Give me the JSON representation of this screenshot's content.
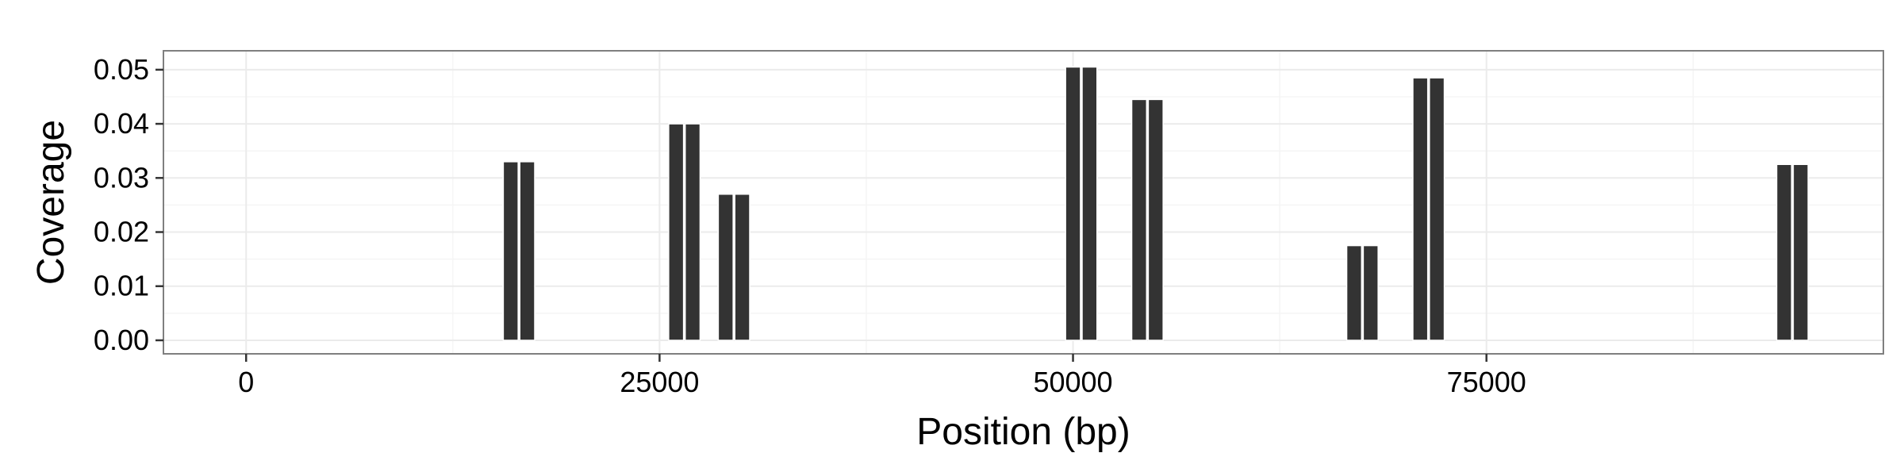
{
  "chart_data": {
    "type": "bar",
    "title": "",
    "xlabel": "Position (bp)",
    "ylabel": "Coverage",
    "xlim": [
      -5000,
      99000
    ],
    "ylim": [
      -0.0025,
      0.0535
    ],
    "x_ticks": [
      0,
      25000,
      50000,
      75000
    ],
    "x_tick_labels": [
      "0",
      "25000",
      "50000",
      "75000"
    ],
    "y_ticks": [
      0,
      0.01,
      0.02,
      0.03,
      0.04,
      0.05
    ],
    "y_tick_labels": [
      "0.00",
      "0.01",
      "0.02",
      "0.03",
      "0.04",
      "0.05"
    ],
    "bar_width": 900,
    "bars": [
      {
        "x": 16000,
        "y": 0.033
      },
      {
        "x": 17000,
        "y": 0.033
      },
      {
        "x": 26000,
        "y": 0.04
      },
      {
        "x": 27000,
        "y": 0.04
      },
      {
        "x": 29000,
        "y": 0.027
      },
      {
        "x": 30000,
        "y": 0.027
      },
      {
        "x": 50000,
        "y": 0.0505
      },
      {
        "x": 51000,
        "y": 0.0505
      },
      {
        "x": 54000,
        "y": 0.0445
      },
      {
        "x": 55000,
        "y": 0.0445
      },
      {
        "x": 67000,
        "y": 0.0175
      },
      {
        "x": 68000,
        "y": 0.0175
      },
      {
        "x": 71000,
        "y": 0.0485
      },
      {
        "x": 72000,
        "y": 0.0485
      },
      {
        "x": 93000,
        "y": 0.0325
      },
      {
        "x": 94000,
        "y": 0.0325
      }
    ],
    "grid": true,
    "legend": "none",
    "colors": {
      "bar": "#333333",
      "bar_edge": "#ffffff",
      "panel_border": "#7f7f7f",
      "grid_major": "#ebebeb",
      "grid_minor": "#f5f5f5",
      "tick": "#333333"
    }
  }
}
